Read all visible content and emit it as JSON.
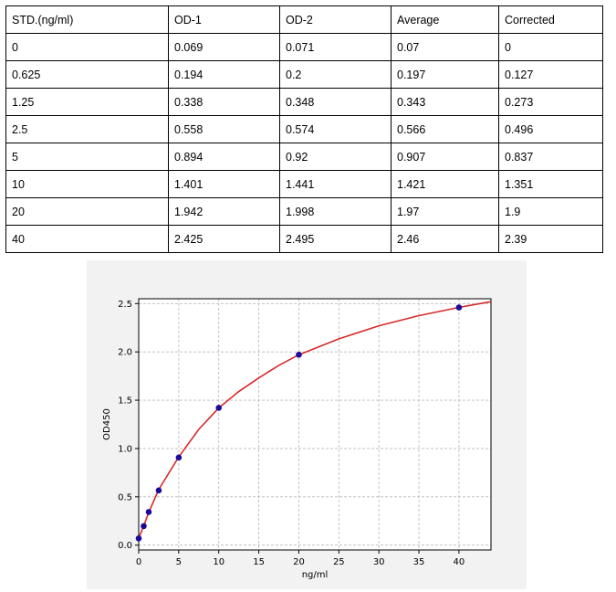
{
  "table": {
    "headers": [
      "STD.(ng/ml)",
      "OD-1",
      "OD-2",
      "Average",
      "Corrected"
    ],
    "rows": [
      [
        "0",
        "0.069",
        "0.071",
        "0.07",
        "0"
      ],
      [
        "0.625",
        "0.194",
        "0.2",
        "0.197",
        "0.127"
      ],
      [
        "1.25",
        "0.338",
        "0.348",
        "0.343",
        "0.273"
      ],
      [
        "2.5",
        "0.558",
        "0.574",
        "0.566",
        "0.496"
      ],
      [
        "5",
        "0.894",
        "0.92",
        "0.907",
        "0.837"
      ],
      [
        "10",
        "1.401",
        "1.441",
        "1.421",
        "1.351"
      ],
      [
        "20",
        "1.942",
        "1.998",
        "1.97",
        "1.9"
      ],
      [
        "40",
        "2.425",
        "2.495",
        "2.46",
        "2.39"
      ]
    ]
  },
  "chart_data": {
    "type": "scatter",
    "xlabel": "ng/ml",
    "ylabel": "OD450",
    "xlim": [
      0,
      44
    ],
    "ylim": [
      -0.05,
      2.55
    ],
    "xticks": [
      0,
      5,
      10,
      15,
      20,
      25,
      30,
      35,
      40
    ],
    "yticks": [
      0.0,
      0.5,
      1.0,
      1.5,
      2.0,
      2.5
    ],
    "xtick_labels": [
      "0",
      "5",
      "10",
      "15",
      "20",
      "25",
      "30",
      "35",
      "40"
    ],
    "ytick_labels": [
      "0.0",
      "0.5",
      "1.0",
      "1.5",
      "2.0",
      "2.5"
    ],
    "grid": true,
    "points": {
      "x": [
        0,
        0.625,
        1.25,
        2.5,
        5,
        10,
        20,
        40
      ],
      "y": [
        0.07,
        0.197,
        0.343,
        0.566,
        0.907,
        1.421,
        1.97,
        2.46
      ]
    },
    "fit_curve": {
      "x": [
        0,
        0.625,
        1.25,
        2.5,
        5,
        7.5,
        10,
        12.5,
        15,
        17.5,
        20,
        25,
        30,
        35,
        40,
        44
      ],
      "y": [
        0.07,
        0.199,
        0.338,
        0.575,
        0.913,
        1.198,
        1.42,
        1.59,
        1.73,
        1.86,
        1.97,
        2.135,
        2.27,
        2.375,
        2.46,
        2.52
      ]
    },
    "colors": {
      "points": "#1a0a9c",
      "curve": "#d62a2a",
      "grid": "#b8b8b8"
    }
  }
}
